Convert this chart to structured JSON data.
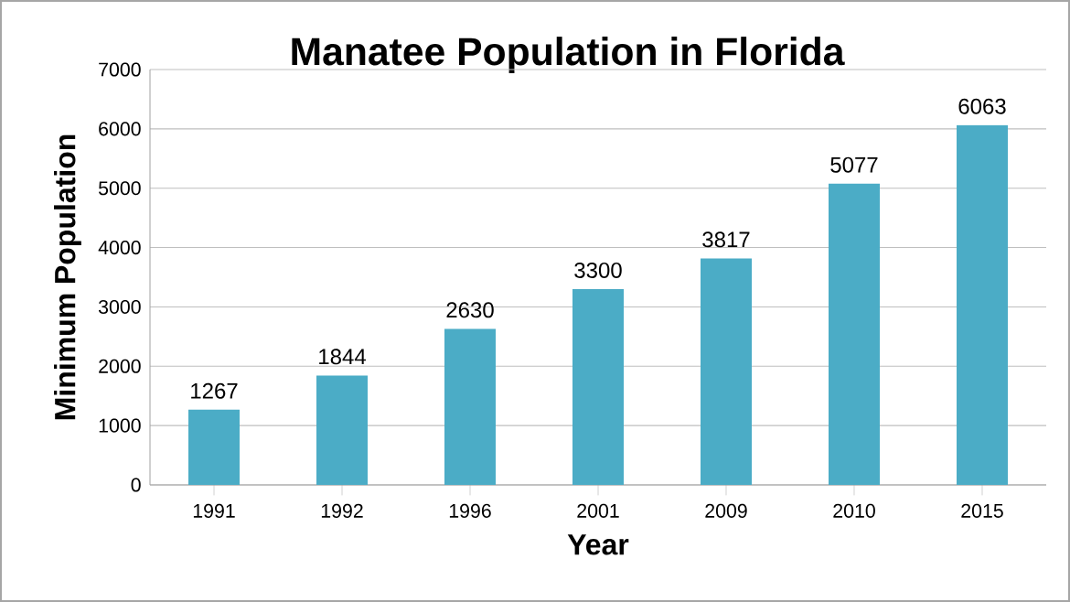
{
  "chart_data": {
    "type": "bar",
    "title": "Manatee Population in Florida",
    "xlabel": "Year",
    "ylabel": "Minimum Population",
    "categories": [
      "1991",
      "1992",
      "1996",
      "2001",
      "2009",
      "2010",
      "2015"
    ],
    "values": [
      1267,
      1844,
      2630,
      3300,
      3817,
      5077,
      6063
    ],
    "color": "#4bacc6",
    "ylim": [
      0,
      7000
    ],
    "yticks": [
      0,
      1000,
      2000,
      3000,
      4000,
      5000,
      6000,
      7000
    ],
    "grid": "y",
    "data_labels": true
  }
}
